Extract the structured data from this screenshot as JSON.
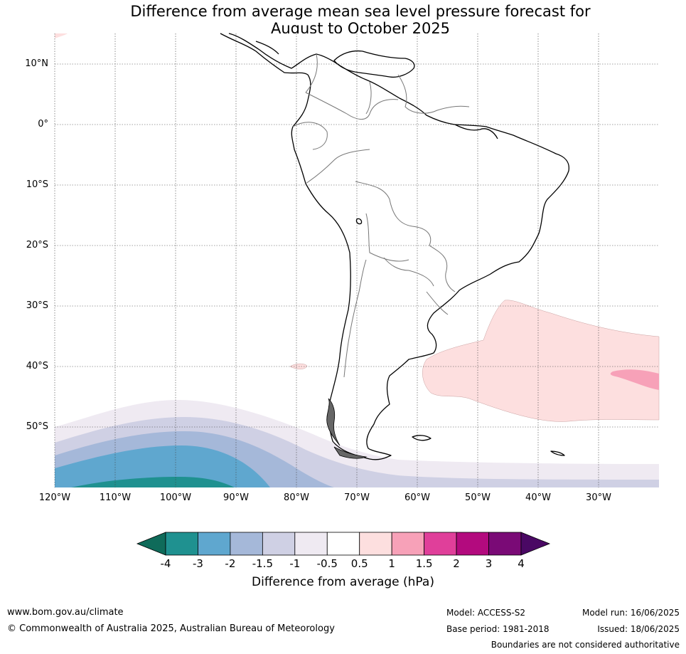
{
  "title_line1": "Difference from average mean sea level pressure forecast for",
  "title_line2": "August to October 2025",
  "map": {
    "lat_labels": [
      "10°N",
      "0°",
      "10°S",
      "20°S",
      "30°S",
      "40°S",
      "50°S"
    ],
    "lon_labels": [
      "120°W",
      "110°W",
      "100°W",
      "90°W",
      "80°W",
      "70°W",
      "60°W",
      "50°W",
      "40°W",
      "30°W"
    ]
  },
  "colorbar": {
    "ticks": [
      "-4",
      "-3",
      "-2",
      "-1.5",
      "-1",
      "-0.5",
      "0.5",
      "1",
      "1.5",
      "2",
      "3",
      "4"
    ],
    "colors": [
      "#0f6b5a",
      "#1f9190",
      "#5fa7cf",
      "#a5b8d9",
      "#cfd0e4",
      "#efeaf2",
      "#ffffff",
      "#fddfdf",
      "#f7a1b8",
      "#e03f9a",
      "#b30a7e",
      "#7a0a76",
      "#4a0864"
    ],
    "label": "Difference from average (hPa)"
  },
  "footer": {
    "website": "www.bom.gov.au/climate",
    "copyright": "© Commonwealth of Australia 2025, Australian Bureau of Meteorology",
    "model": "Model: ACCESS-S2",
    "base_period": "Base period: 1981-2018",
    "model_run": "Model run: 16/06/2025",
    "issued": "Issued: 18/06/2025",
    "disclaimer": "Boundaries are not considered authoritative"
  }
}
